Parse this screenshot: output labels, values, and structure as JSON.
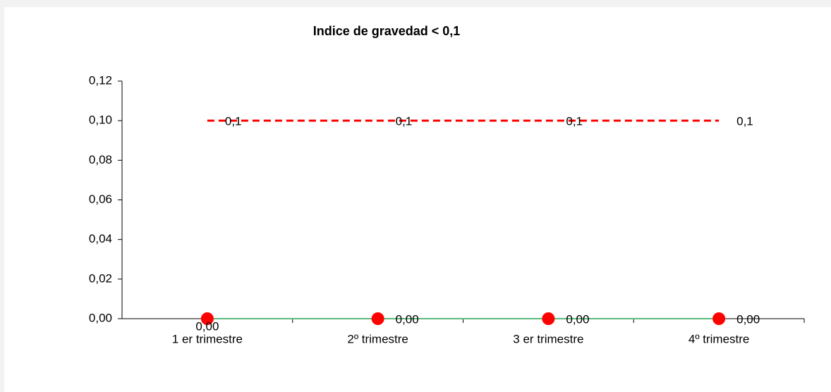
{
  "chart_data": {
    "type": "line",
    "title": "Indice de gravedad < 0,1",
    "categories": [
      "1 er trimestre",
      "2º trimestre",
      "3 er trimestre",
      "4º trimestre"
    ],
    "series": [
      {
        "color": "#ff0000",
        "line_color": "#5cb87c",
        "values": [
          0,
          0,
          0,
          0
        ],
        "value_labels": [
          "0,00",
          "0,00",
          "0,00",
          "0,00"
        ]
      },
      {
        "color": "#ff0000",
        "dashed": true,
        "values": [
          0.1,
          0.1,
          0.1,
          0.1
        ],
        "value_labels": [
          "0,1",
          "0,1",
          "0,1",
          "0,1"
        ]
      }
    ],
    "ylim": [
      0,
      0.12
    ],
    "yticks": [
      {
        "value": 0,
        "label": "0,00"
      },
      {
        "value": 0.02,
        "label": "0,02"
      },
      {
        "value": 0.04,
        "label": "0,04"
      },
      {
        "value": 0.06,
        "label": "0,06"
      },
      {
        "value": 0.08,
        "label": "0,08"
      },
      {
        "value": 0.1,
        "label": "0,10"
      },
      {
        "value": 0.12,
        "label": "0,12"
      }
    ],
    "grid": false
  }
}
